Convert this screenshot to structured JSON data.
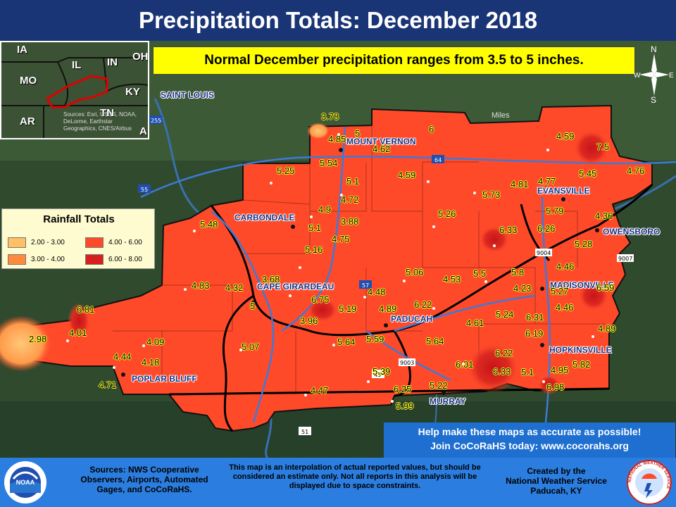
{
  "title": "Precipitation Totals: December 2018",
  "normal_note": "Normal December precipitation ranges from 3.5 to 5 inches.",
  "scale_label": "Miles",
  "inset": {
    "states": [
      {
        "name": "IA"
      },
      {
        "name": "IL"
      },
      {
        "name": "IN"
      },
      {
        "name": "OH"
      },
      {
        "name": "MO"
      },
      {
        "name": "KY"
      },
      {
        "name": "AR"
      },
      {
        "name": "TN"
      },
      {
        "name": "A"
      }
    ],
    "credit": "Sources: Esri, USGS, NOAA, DeLorme, Earthstar Geographics, CNES/Airbus"
  },
  "compass": {
    "n": "N",
    "s": "S",
    "e": "E",
    "w": "W"
  },
  "legend": {
    "title": "Rainfall Totals",
    "items": [
      {
        "label": "2.00 - 3.00",
        "color": "#ffbf66"
      },
      {
        "label": "3.00 - 4.00",
        "color": "#ff8a3d"
      },
      {
        "label": "4.00 - 6.00",
        "color": "#ff4a2a"
      },
      {
        "label": "6.00 - 8.00",
        "color": "#d81f1f"
      }
    ]
  },
  "cities": [
    {
      "name": "SAINT LOUIS"
    },
    {
      "name": "MOUNT VERNON"
    },
    {
      "name": "EVANSVILLE"
    },
    {
      "name": "CARBONDALE"
    },
    {
      "name": "OWENSBORO"
    },
    {
      "name": "CAPE GIRARDEAU"
    },
    {
      "name": "MADISONVILLE"
    },
    {
      "name": "PADUCAH"
    },
    {
      "name": "HOPKINSVILLE"
    },
    {
      "name": "POPLAR BLUFF"
    },
    {
      "name": "MURRAY"
    }
  ],
  "highway_labels": [
    "255",
    "64",
    "55",
    "9004",
    "57",
    "9007",
    "9003",
    "45",
    "51"
  ],
  "values": [
    "3.78",
    "5",
    "6",
    "4.85",
    "4.62",
    "4.59",
    "7.5",
    "5.25",
    "5.54",
    "5.1",
    "4.59",
    "4.81",
    "4.77",
    "5.45",
    "4.76",
    "4.72",
    "5.73",
    "4.9",
    "3.88",
    "5.26",
    "5.79",
    "4.36",
    "5.48",
    "5.1",
    "4.75",
    "6.33",
    "6.26",
    "5.16",
    "5.28",
    "5.06",
    "5.5",
    "5.8",
    "4.46",
    "4.83",
    "4.32",
    "3.68",
    "4.53",
    "5.27",
    "6.59",
    "4.23",
    "6.75",
    "4.48",
    "5",
    "5.19",
    "4.89",
    "6.22",
    "5.24",
    "4.46",
    "6.81",
    "6.31",
    "4.01",
    "3.96",
    "4.61",
    "6.19",
    "4.89",
    "2.98",
    "4.09",
    "5.07",
    "5.64",
    "5.59",
    "5.64",
    "4.44",
    "6.22",
    "4.18",
    "6.01",
    "4.95",
    "5.82",
    "5.39",
    "6.33",
    "5.1",
    "4.71",
    "6.25",
    "5.22",
    "6.98",
    "4.47",
    "5.99"
  ],
  "cocorahs": {
    "line1": "Help make these maps as accurate as possible!",
    "line2": "Join CoCoRaHS today: www.cocorahs.org"
  },
  "footer": {
    "sources": "Sources: NWS Cooperative Observers, Airports, Automated Gages, and CoCoRaHS.",
    "disclaimer": "This map is an interpolation of actual reported values, but should be considered an estimate only. Not all reports in this analysis will be displayed due to space constraints.",
    "created_line1": "Created by the",
    "created_line2": "National Weather Service",
    "created_line3": "Paducah, KY"
  },
  "logos": {
    "noaa": "NOAA",
    "nws_ring": "NATIONAL WEATHER SERVICE"
  }
}
